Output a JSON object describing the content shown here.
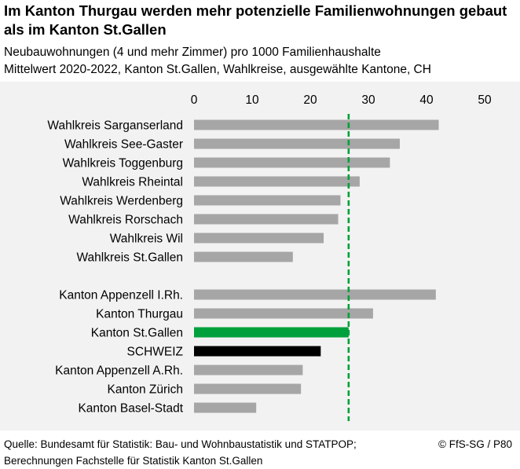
{
  "title": "Im Kanton Thurgau werden mehr potenzielle Familienwohnungen gebaut als im Kanton St.Gallen",
  "subtitle_line1": "Neubauwohnungen (4 und mehr Zimmer) pro 1000 Familienhaushalte",
  "subtitle_line2": "Mittelwert 2020-2022, Kanton St.Gallen, Wahlkreise, ausgewählte Kantone, CH",
  "footer": {
    "source": "Quelle: Bundesamt für Statistik: Bau- und Wohnbaustatistik und STATPOP; Berechnungen Fachstelle für Statistik Kanton St.Gallen",
    "copyright": "© FfS-SG / P80"
  },
  "colors": {
    "bar_default": "#a6a6a6",
    "bar_highlight": "#00a03c",
    "bar_switzerland": "#000000",
    "reference_line": "#00a03c",
    "panel_background": "#f2f2f2"
  },
  "chart_data": {
    "type": "bar",
    "orientation": "horizontal",
    "xlim": [
      0,
      50
    ],
    "xticks": [
      0,
      10,
      20,
      30,
      40,
      50
    ],
    "tick_labels": [
      "0",
      "10",
      "20",
      "30",
      "40",
      "50"
    ],
    "x_axis_position": "top",
    "grid": false,
    "reference_line": {
      "value": 26.6,
      "style": "dashed",
      "color": "#00a03c"
    },
    "categories": [
      "Wahlkreis Sarganserland",
      "Wahlkreis See-Gaster",
      "Wahlkreis Toggenburg",
      "Wahlkreis Rheintal",
      "Wahlkreis Werdenberg",
      "Wahlkreis Rorschach",
      "Wahlkreis Wil",
      "Wahlkreis St.Gallen",
      "",
      "Kanton Appenzell I.Rh.",
      "Kanton Thurgau",
      "Kanton St.Gallen",
      "SCHWEIZ",
      "Kanton Appenzell A.Rh.",
      "Kanton Zürich",
      "Kanton Basel-Stadt"
    ],
    "values": [
      42.1,
      35.4,
      33.7,
      28.5,
      25.2,
      24.8,
      22.3,
      17.0,
      null,
      41.6,
      30.8,
      26.6,
      21.8,
      18.7,
      18.4,
      10.7
    ],
    "highlight": [
      null,
      null,
      null,
      null,
      null,
      null,
      null,
      null,
      null,
      null,
      null,
      "bar_highlight",
      "bar_switzerland",
      null,
      null,
      null
    ]
  }
}
